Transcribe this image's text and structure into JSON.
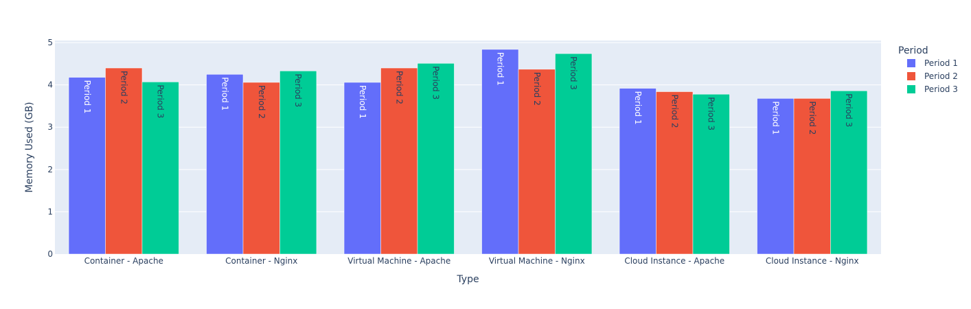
{
  "chart_data": {
    "type": "bar",
    "barmode": "group",
    "categories": [
      "Container - Apache",
      "Container - Nginx",
      "Virtual Machine - Apache",
      "Virtual Machine - Nginx",
      "Cloud Instance - Apache",
      "Cloud Instance - Nginx"
    ],
    "series": [
      {
        "name": "Period 1",
        "color": "#636efa",
        "label_color": "#ffffff",
        "values": [
          4.18,
          4.25,
          4.06,
          4.84,
          3.92,
          3.68
        ]
      },
      {
        "name": "Period 2",
        "color": "#ef553b",
        "label_color": "#2a3f5f",
        "values": [
          4.4,
          4.06,
          4.4,
          4.37,
          3.84,
          3.68
        ]
      },
      {
        "name": "Period 3",
        "color": "#00cc96",
        "label_color": "#2a3f5f",
        "values": [
          4.07,
          4.33,
          4.51,
          4.74,
          3.78,
          3.86
        ]
      }
    ],
    "xlabel": "Type",
    "ylabel": "Memory Used (GB)",
    "ylim": [
      0,
      5.05
    ],
    "yticks": [
      0,
      1,
      2,
      3,
      4,
      5
    ],
    "grid": true,
    "legend": {
      "title": "Period",
      "placement": "top-right"
    },
    "plot_bgcolor": "#e5ecf6"
  }
}
